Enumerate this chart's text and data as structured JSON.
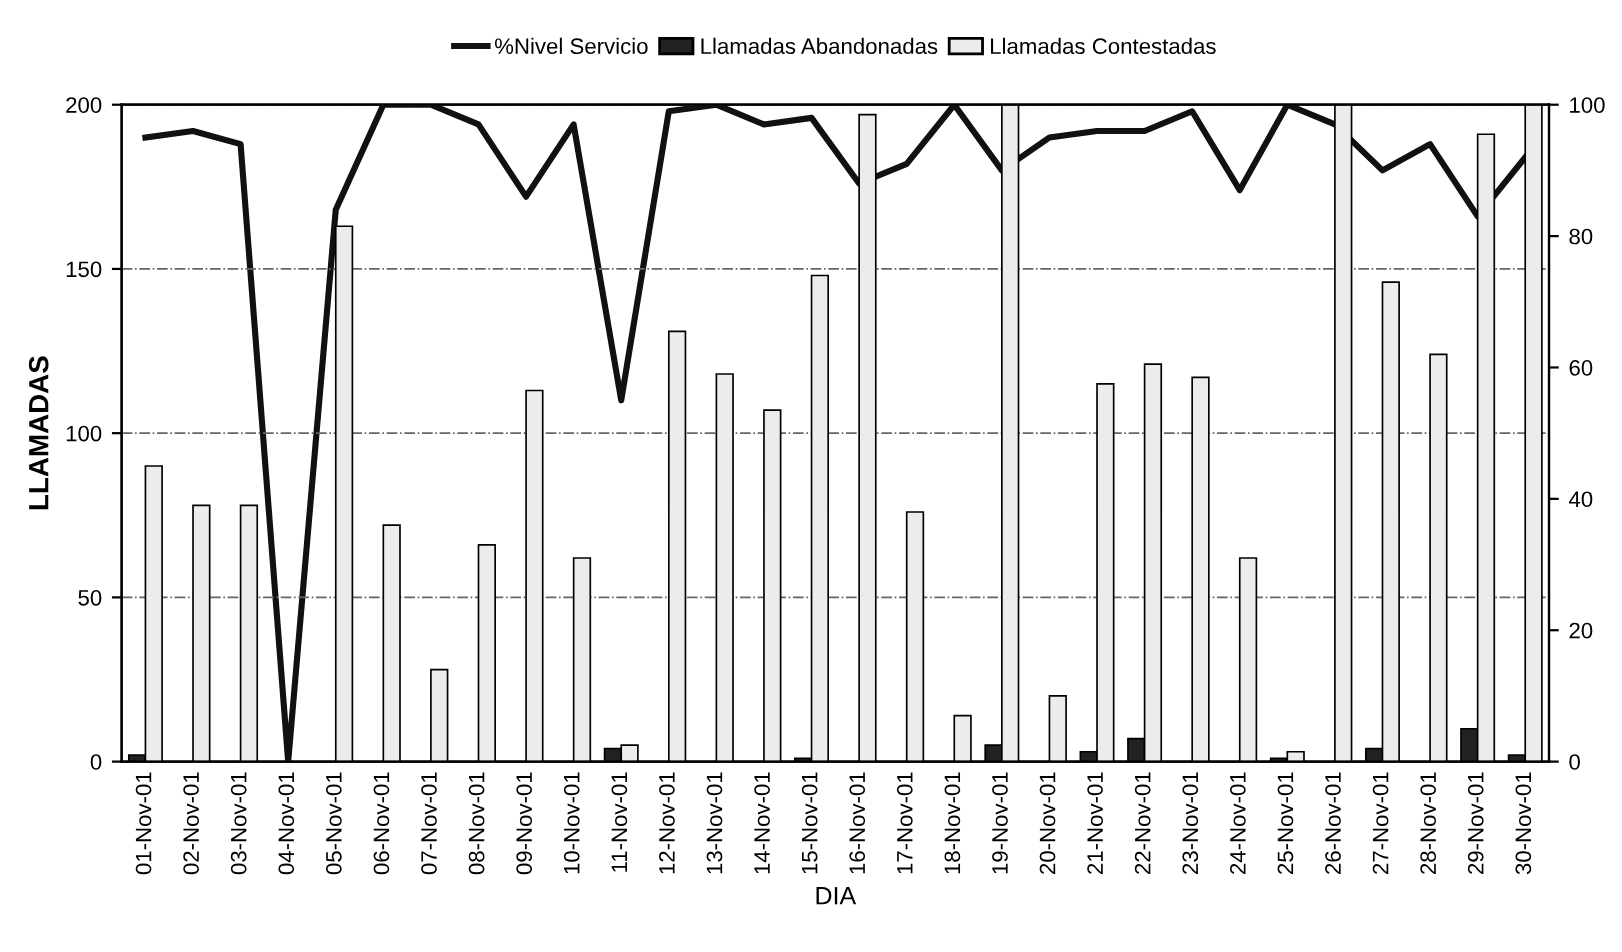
{
  "chart_data": {
    "type": "bar",
    "xlabel": "DIA",
    "ylabel": "LLAMADAS",
    "categories": [
      "01-Nov-01",
      "02-Nov-01",
      "03-Nov-01",
      "04-Nov-01",
      "05-Nov-01",
      "06-Nov-01",
      "07-Nov-01",
      "08-Nov-01",
      "09-Nov-01",
      "10-Nov-01",
      "11-Nov-01",
      "12-Nov-01",
      "13-Nov-01",
      "14-Nov-01",
      "15-Nov-01",
      "16-Nov-01",
      "17-Nov-01",
      "18-Nov-01",
      "19-Nov-01",
      "20-Nov-01",
      "21-Nov-01",
      "22-Nov-01",
      "23-Nov-01",
      "24-Nov-01",
      "25-Nov-01",
      "26-Nov-01",
      "27-Nov-01",
      "28-Nov-01",
      "29-Nov-01",
      "30-Nov-01"
    ],
    "series": [
      {
        "name": "%Nivel Servicio",
        "type": "line",
        "axis": "y2",
        "color": "#111111",
        "values": [
          95,
          96,
          94,
          0,
          84,
          100,
          100,
          97,
          86,
          97,
          55,
          99,
          100,
          97,
          98,
          88,
          91,
          100,
          90,
          95,
          96,
          96,
          99,
          87,
          100,
          97,
          90,
          94,
          83,
          92
        ]
      },
      {
        "name": "Llamadas Abandonadas",
        "color": "#222222",
        "values": [
          2,
          0,
          0,
          0,
          0,
          0,
          0,
          0,
          0,
          0,
          4,
          0,
          0,
          0,
          1,
          0,
          0,
          0,
          5,
          0,
          3,
          7,
          0,
          0,
          1,
          0,
          4,
          0,
          10,
          2
        ]
      },
      {
        "name": "Llamadas Contestadas",
        "color": "#ececec",
        "values": [
          90,
          78,
          78,
          0,
          163,
          72,
          28,
          66,
          113,
          62,
          5,
          131,
          118,
          107,
          148,
          197,
          76,
          14,
          200,
          20,
          115,
          121,
          117,
          62,
          3,
          200,
          146,
          124,
          191,
          200
        ]
      }
    ],
    "ylim": [
      0,
      200
    ],
    "yticks": [
      0,
      50,
      100,
      150,
      200
    ],
    "y2lim": [
      0,
      100
    ],
    "y2ticks": [
      0,
      20,
      40,
      60,
      80,
      100
    ],
    "grid": "y",
    "legend": "top",
    "line_style": "solid"
  }
}
